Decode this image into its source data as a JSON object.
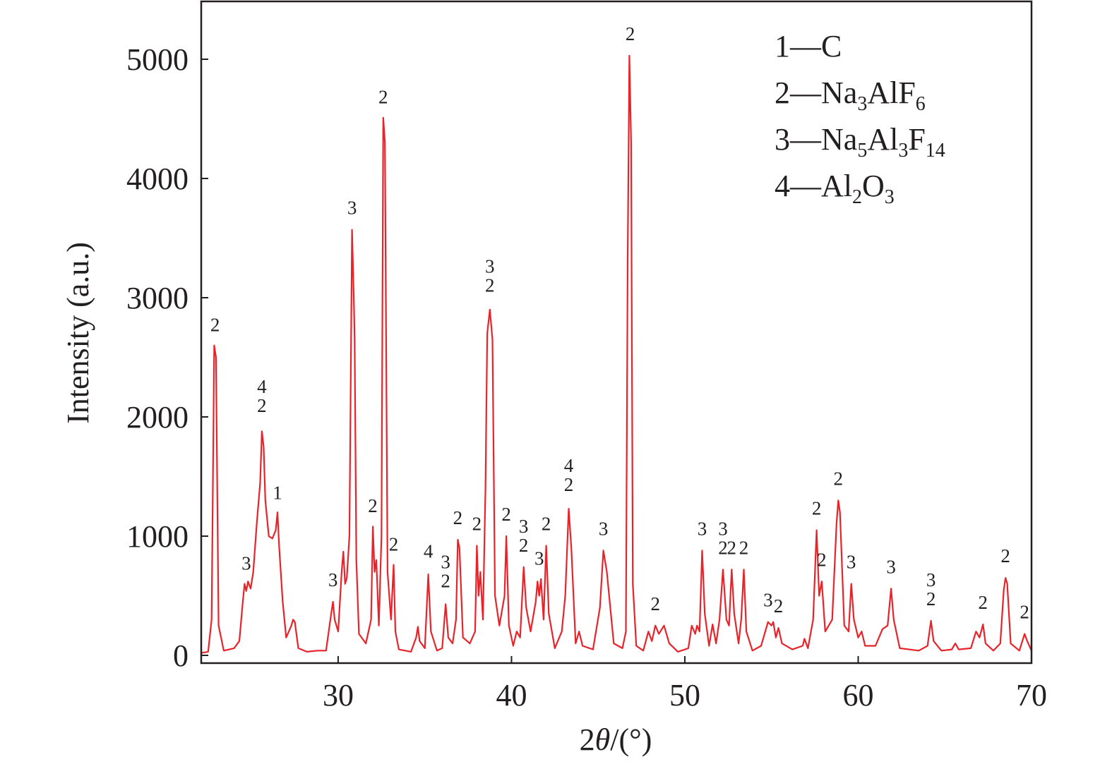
{
  "chart_data": {
    "type": "line",
    "color": "#e8232a",
    "xlabel": [
      {
        "text": "2"
      },
      {
        "italic": "θ"
      },
      {
        "text": "/(°)"
      }
    ],
    "ylabel": "Intensity (a.u.)",
    "xlim": [
      22.1,
      70
    ],
    "ylim": [
      -65,
      5485
    ],
    "xticks": [
      30,
      40,
      50,
      60,
      70
    ],
    "yticks": [
      0,
      1000,
      2000,
      3000,
      4000,
      5000
    ],
    "legend": [
      [
        {
          "text": "1—C"
        }
      ],
      [
        {
          "text": "2—Na"
        },
        {
          "sub": "3"
        },
        {
          "text": "AlF"
        },
        {
          "sub": "6"
        }
      ],
      [
        {
          "text": "3—Na"
        },
        {
          "sub": "5"
        },
        {
          "text": "Al"
        },
        {
          "sub": "3"
        },
        {
          "text": "F"
        },
        {
          "sub": "14"
        }
      ],
      [
        {
          "text": "4—Al"
        },
        {
          "sub": "2"
        },
        {
          "text": "O"
        },
        {
          "sub": "3"
        }
      ]
    ],
    "x": [
      22.1,
      22.5,
      22.7,
      22.85,
      22.95,
      23.1,
      23.4,
      24.0,
      24.3,
      24.5,
      24.6,
      24.7,
      24.8,
      24.95,
      25.1,
      25.3,
      25.5,
      25.6,
      25.7,
      25.8,
      26.0,
      26.2,
      26.4,
      26.5,
      26.6,
      26.8,
      27.0,
      27.3,
      27.4,
      27.5,
      27.7,
      28.2,
      28.8,
      29.3,
      29.6,
      29.7,
      29.8,
      30.0,
      30.2,
      30.3,
      30.4,
      30.5,
      30.65,
      30.8,
      30.9,
      30.95,
      31.05,
      31.2,
      31.6,
      31.9,
      32.0,
      32.1,
      32.2,
      32.35,
      32.5,
      32.6,
      32.7,
      32.85,
      33.05,
      33.2,
      33.3,
      33.5,
      34.2,
      34.5,
      34.6,
      34.7,
      35.0,
      35.2,
      35.35,
      35.7,
      36.0,
      36.2,
      36.35,
      36.6,
      36.8,
      36.9,
      37.0,
      37.2,
      37.6,
      37.9,
      38.0,
      38.1,
      38.2,
      38.35,
      38.5,
      38.6,
      38.75,
      38.9,
      39.05,
      39.3,
      39.6,
      39.7,
      39.85,
      40.1,
      40.3,
      40.5,
      40.7,
      40.85,
      41.1,
      41.4,
      41.5,
      41.6,
      41.7,
      41.85,
      42.0,
      42.15,
      42.5,
      42.9,
      43.1,
      43.3,
      43.45,
      43.7,
      43.9,
      44.1,
      44.7,
      45.1,
      45.3,
      45.5,
      45.9,
      46.4,
      46.6,
      46.7,
      46.8,
      46.9,
      47.0,
      47.2,
      47.6,
      47.9,
      48.1,
      48.3,
      48.5,
      48.8,
      49.1,
      49.6,
      50.2,
      50.4,
      50.6,
      50.7,
      50.85,
      51.0,
      51.15,
      51.4,
      51.6,
      51.8,
      52.0,
      52.2,
      52.4,
      52.55,
      52.7,
      52.85,
      53.1,
      53.25,
      53.4,
      53.55,
      53.9,
      54.4,
      54.8,
      55.0,
      55.1,
      55.25,
      55.4,
      55.6,
      56.2,
      56.8,
      56.9,
      57.1,
      57.4,
      57.6,
      57.75,
      57.9,
      58.1,
      58.5,
      58.75,
      58.85,
      58.95,
      59.2,
      59.45,
      59.6,
      59.75,
      60.0,
      60.2,
      60.4,
      61.0,
      61.4,
      61.7,
      61.9,
      62.05,
      62.4,
      63.5,
      64.0,
      64.2,
      64.35,
      64.8,
      65.4,
      65.6,
      65.8,
      66.5,
      66.8,
      67.0,
      67.2,
      67.35,
      67.8,
      68.2,
      68.4,
      68.5,
      68.6,
      68.8,
      69.3,
      69.6,
      69.75,
      70.0
    ],
    "values": [
      20,
      30,
      300,
      2600,
      2500,
      250,
      40,
      60,
      120,
      450,
      600,
      540,
      620,
      560,
      700,
      1100,
      1450,
      1880,
      1750,
      1300,
      1000,
      980,
      1050,
      1200,
      900,
      450,
      150,
      250,
      300,
      280,
      60,
      30,
      40,
      40,
      350,
      450,
      300,
      200,
      700,
      870,
      600,
      650,
      1000,
      3570,
      3000,
      2650,
      800,
      180,
      100,
      300,
      1080,
      700,
      800,
      250,
      1000,
      4510,
      4300,
      700,
      300,
      760,
      200,
      50,
      30,
      150,
      240,
      120,
      60,
      680,
      200,
      40,
      60,
      430,
      150,
      100,
      300,
      970,
      900,
      150,
      100,
      200,
      920,
      500,
      700,
      300,
      1400,
      2700,
      2900,
      2650,
      500,
      250,
      500,
      1000,
      250,
      80,
      200,
      150,
      740,
      400,
      200,
      450,
      620,
      500,
      640,
      300,
      920,
      350,
      60,
      200,
      500,
      1230,
      900,
      100,
      200,
      80,
      50,
      400,
      880,
      700,
      100,
      60,
      200,
      3300,
      5030,
      4300,
      600,
      80,
      40,
      200,
      120,
      250,
      180,
      250,
      100,
      30,
      60,
      250,
      180,
      250,
      200,
      880,
      350,
      80,
      260,
      100,
      300,
      720,
      300,
      250,
      720,
      350,
      100,
      300,
      720,
      200,
      40,
      80,
      280,
      250,
      280,
      150,
      230,
      100,
      50,
      80,
      140,
      60,
      300,
      1050,
      500,
      620,
      200,
      300,
      1100,
      1300,
      1200,
      250,
      200,
      600,
      300,
      150,
      200,
      80,
      80,
      220,
      250,
      560,
      300,
      60,
      40,
      80,
      290,
      120,
      40,
      50,
      100,
      50,
      60,
      200,
      150,
      260,
      100,
      40,
      100,
      550,
      650,
      600,
      100,
      40,
      180,
      120,
      40
    ],
    "annotations": [
      {
        "x": 22.9,
        "y": 2720,
        "text": [
          "2"
        ]
      },
      {
        "x": 24.7,
        "y": 720,
        "text": [
          "3"
        ]
      },
      {
        "x": 25.6,
        "y": 2040,
        "text": [
          "4",
          "2"
        ]
      },
      {
        "x": 26.5,
        "y": 1310,
        "text": [
          "1"
        ]
      },
      {
        "x": 29.7,
        "y": 580,
        "text": [
          "3"
        ]
      },
      {
        "x": 30.8,
        "y": 3700,
        "text": [
          "3"
        ]
      },
      {
        "x": 32.0,
        "y": 1200,
        "text": [
          "2"
        ]
      },
      {
        "x": 32.6,
        "y": 4630,
        "text": [
          "2"
        ]
      },
      {
        "x": 33.2,
        "y": 880,
        "text": [
          "2"
        ]
      },
      {
        "x": 35.2,
        "y": 820,
        "text": [
          "4"
        ]
      },
      {
        "x": 36.2,
        "y": 570,
        "text": [
          "3",
          "2"
        ]
      },
      {
        "x": 36.9,
        "y": 1100,
        "text": [
          "2"
        ]
      },
      {
        "x": 38.0,
        "y": 1050,
        "text": [
          "2"
        ]
      },
      {
        "x": 38.75,
        "y": 3050,
        "text": [
          "3",
          "2"
        ]
      },
      {
        "x": 39.7,
        "y": 1130,
        "text": [
          "2"
        ]
      },
      {
        "x": 40.7,
        "y": 870,
        "text": [
          "3",
          "2"
        ]
      },
      {
        "x": 41.6,
        "y": 760,
        "text": [
          "3"
        ]
      },
      {
        "x": 42.0,
        "y": 1050,
        "text": [
          "2"
        ]
      },
      {
        "x": 43.3,
        "y": 1380,
        "text": [
          "4",
          "2"
        ]
      },
      {
        "x": 45.3,
        "y": 1010,
        "text": [
          "3"
        ]
      },
      {
        "x": 46.85,
        "y": 5160,
        "text": [
          "2"
        ]
      },
      {
        "x": 48.3,
        "y": 380,
        "text": [
          "2"
        ]
      },
      {
        "x": 51.0,
        "y": 1010,
        "text": [
          "3"
        ]
      },
      {
        "x": 52.2,
        "y": 850,
        "text": [
          "3",
          "2"
        ]
      },
      {
        "x": 52.7,
        "y": 850,
        "text": [
          "2"
        ]
      },
      {
        "x": 53.4,
        "y": 850,
        "text": [
          "2"
        ]
      },
      {
        "x": 54.8,
        "y": 410,
        "text": [
          "3"
        ]
      },
      {
        "x": 55.4,
        "y": 360,
        "text": [
          "2"
        ]
      },
      {
        "x": 57.6,
        "y": 1180,
        "text": [
          "2"
        ]
      },
      {
        "x": 57.9,
        "y": 750,
        "text": [
          "2"
        ]
      },
      {
        "x": 58.85,
        "y": 1430,
        "text": [
          "2"
        ]
      },
      {
        "x": 59.6,
        "y": 730,
        "text": [
          "3"
        ]
      },
      {
        "x": 61.9,
        "y": 690,
        "text": [
          "3"
        ]
      },
      {
        "x": 64.2,
        "y": 420,
        "text": [
          "3",
          "2"
        ]
      },
      {
        "x": 67.2,
        "y": 390,
        "text": [
          "2"
        ]
      },
      {
        "x": 68.5,
        "y": 780,
        "text": [
          "2"
        ]
      },
      {
        "x": 69.6,
        "y": 310,
        "text": [
          "2"
        ]
      }
    ]
  }
}
